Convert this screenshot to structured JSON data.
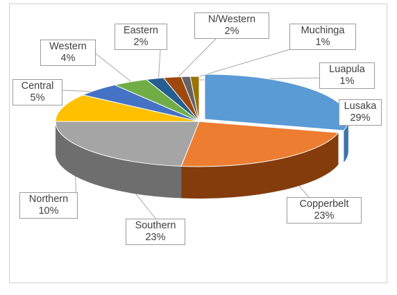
{
  "chart_data": {
    "type": "pie",
    "style": "3d-exploded-labels-with-leader-lines",
    "slices": [
      {
        "label": "Lusaka",
        "value": 29,
        "value_label": "29%",
        "color": "#5b9bd5",
        "side": "#3f74a6"
      },
      {
        "label": "Copperbelt",
        "value": 23,
        "value_label": "23%",
        "color": "#ed7d31",
        "side": "#843c0c"
      },
      {
        "label": "Southern",
        "value": 23,
        "value_label": "23%",
        "color": "#a5a5a5",
        "side": "#6e6e6e"
      },
      {
        "label": "Northern",
        "value": 10,
        "value_label": "10%",
        "color": "#ffc000",
        "side": "#a67c00"
      },
      {
        "label": "Central",
        "value": 5,
        "value_label": "5%",
        "color": "#4472c4",
        "side": "#2f528f"
      },
      {
        "label": "Western",
        "value": 4,
        "value_label": "4%",
        "color": "#70ad47",
        "side": "#4e7a32"
      },
      {
        "label": "Eastern",
        "value": 2,
        "value_label": "2%",
        "color": "#255e91",
        "side": "#1a4266"
      },
      {
        "label": "N/Western",
        "value": 2,
        "value_label": "2%",
        "color": "#9e480e",
        "side": "#6e320a"
      },
      {
        "label": "Muchinga",
        "value": 1,
        "value_label": "1%",
        "color": "#636363",
        "side": "#444444"
      },
      {
        "label": "Luapula",
        "value": 1,
        "value_label": "1%",
        "color": "#997300",
        "side": "#6b5000"
      }
    ],
    "legend": "none"
  }
}
